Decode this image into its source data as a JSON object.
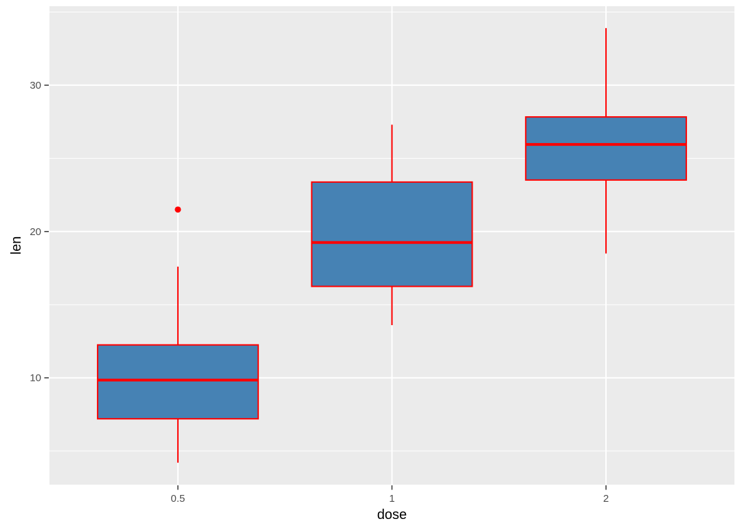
{
  "chart_data": {
    "type": "boxplot",
    "title": "",
    "xlabel": "dose",
    "ylabel": "len",
    "categories": [
      "0.5",
      "1",
      "2"
    ],
    "series": [
      {
        "category": "0.5",
        "whisker_low": 4.2,
        "q1": 7.2,
        "median": 9.85,
        "q3": 12.25,
        "whisker_high": 17.6,
        "outliers": [
          21.5
        ]
      },
      {
        "category": "1",
        "whisker_low": 13.6,
        "q1": 16.25,
        "median": 19.25,
        "q3": 23.38,
        "whisker_high": 27.3,
        "outliers": []
      },
      {
        "category": "2",
        "whisker_low": 18.5,
        "q1": 23.52,
        "median": 25.95,
        "q3": 27.83,
        "whisker_high": 33.9,
        "outliers": []
      }
    ],
    "y_ticks": [
      10,
      20,
      30
    ],
    "y_minor_gridlines": [
      5,
      15,
      25,
      35
    ],
    "ylim": [
      2.7,
      35.4
    ],
    "grid": "on",
    "legend": "none",
    "colors": {
      "box_fill": "#4682B4",
      "box_border": "#FF0000",
      "median": "#FF0000",
      "whisker": "#FF0000",
      "outlier": "#FF0000",
      "panel_bg": "#EBEBEB",
      "gridline": "#FFFFFF",
      "tick_mark": "#333333",
      "axis_text": "#4D4D4D",
      "axis_title": "#000000",
      "background": "#FFFFFF"
    }
  }
}
